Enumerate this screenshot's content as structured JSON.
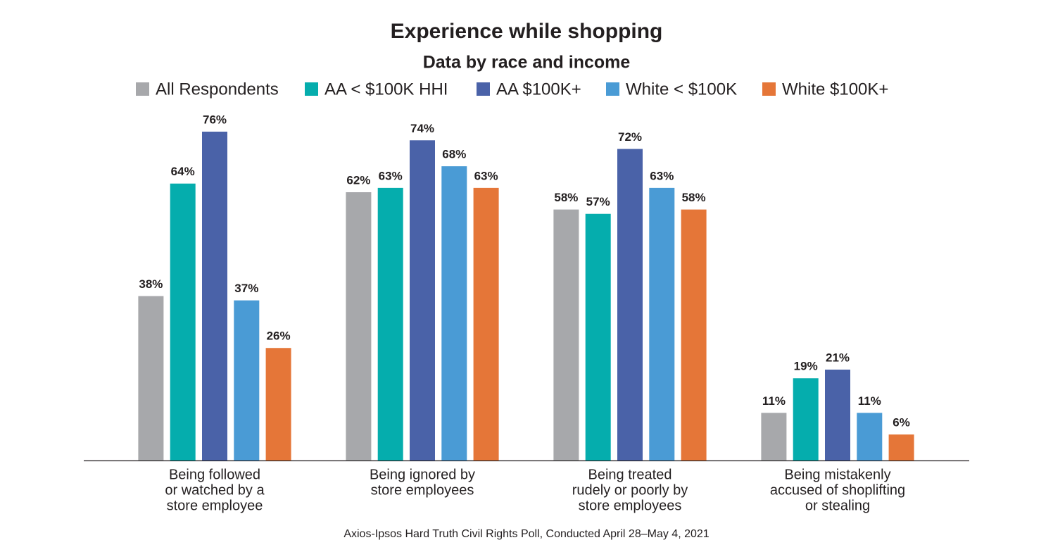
{
  "chart_data": {
    "type": "bar",
    "title": "Experience while shopping",
    "subtitle": "Data by race and income",
    "source": "Axios-Ipsos Hard Truth Civil Rights Poll, Conducted April 28–May 4, 2021",
    "categories": [
      [
        "Being followed",
        "or watched by a",
        "store employee"
      ],
      [
        "Being ignored by",
        "store employees"
      ],
      [
        "Being treated",
        "rudely or poorly by",
        "store employees"
      ],
      [
        "Being mistakenly",
        "accused of shoplifting",
        "or stealing"
      ]
    ],
    "series": [
      {
        "name": "All Respondents",
        "color": "#a7a8ab",
        "values": [
          38,
          62,
          58,
          11
        ],
        "value_labels": [
          "38%",
          "62%",
          "58%",
          "11%"
        ]
      },
      {
        "name": "AA < $100K HHI",
        "color": "#05adad",
        "values": [
          64,
          63,
          57,
          19
        ],
        "value_labels": [
          "64%",
          "63%",
          "57%",
          "19%"
        ]
      },
      {
        "name": "AA $100K+",
        "color": "#4a62a8",
        "values": [
          76,
          74,
          72,
          21
        ],
        "value_labels": [
          "76%",
          "74%",
          "72%",
          "21%"
        ]
      },
      {
        "name": "White < $100K",
        "color": "#4a9bd5",
        "values": [
          37,
          68,
          63,
          11
        ],
        "value_labels": [
          "37%",
          "68%",
          "63%",
          "11%"
        ]
      },
      {
        "name": "White $100K+",
        "color": "#e57638",
        "values": [
          26,
          63,
          58,
          6
        ],
        "value_labels": [
          "26%",
          "63%",
          "58%",
          "6%"
        ]
      }
    ],
    "ylim": [
      0,
      100
    ]
  }
}
